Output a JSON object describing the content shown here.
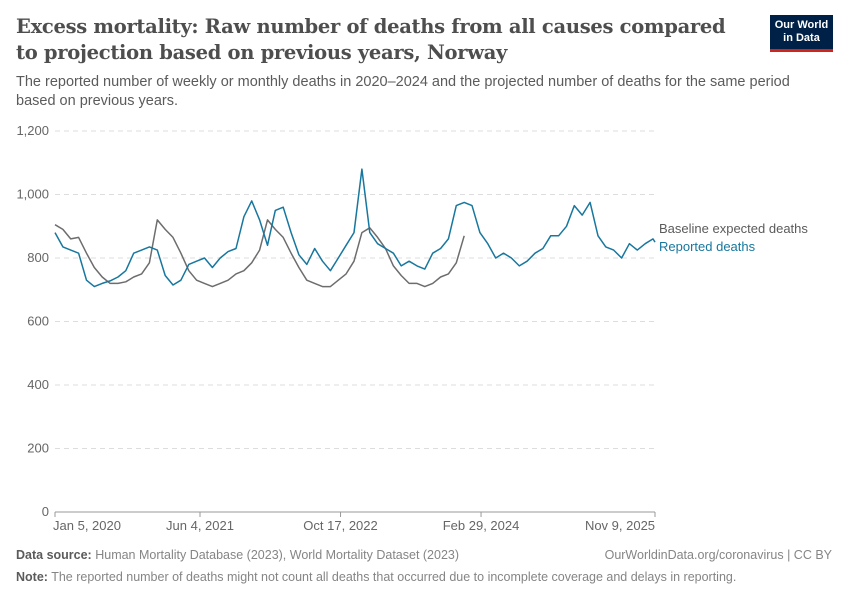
{
  "header": {
    "title": "Excess mortality: Raw number of deaths from all causes compared to projection based on previous years, Norway",
    "subtitle": "The reported number of weekly or monthly deaths in 2020–2024 and the projected number of deaths for the same period based on previous years.",
    "logo_text": "Our World in Data"
  },
  "footer": {
    "source_label": "Data source:",
    "source_text": "Human Mortality Database (2023), World Mortality Dataset (2023)",
    "link_text": "OurWorldinData.org/coronavirus | CC BY",
    "note_label": "Note:",
    "note_text": "The reported number of deaths might not count all deaths that occurred due to incomplete coverage and delays in reporting."
  },
  "chart_data": {
    "type": "line",
    "title": "Excess mortality: Raw number of deaths from all causes compared to projection based on previous years, Norway",
    "xlabel": "",
    "ylabel": "",
    "ylim": [
      0,
      1200
    ],
    "xlim": [
      "2020-01-05",
      "2025-11-09"
    ],
    "y_ticks": [
      0,
      200,
      400,
      600,
      800,
      1000,
      1200
    ],
    "y_tick_labels": [
      "0",
      "200",
      "400",
      "600",
      "800",
      "1,000",
      "1,200"
    ],
    "x_ticks": [
      "2020-01-05",
      "2021-06-04",
      "2022-10-17",
      "2024-02-29",
      "2025-11-09"
    ],
    "x_tick_labels": [
      "Jan 5, 2020",
      "Jun 4, 2021",
      "Oct 17, 2022",
      "Feb 29, 2024",
      "Nov 9, 2025"
    ],
    "grid": "horizontal dashed",
    "legend_placement": "right, inline labels",
    "x": [
      "2020-01-05",
      "2020-02-02",
      "2020-03-01",
      "2020-03-29",
      "2020-04-26",
      "2020-05-24",
      "2020-06-21",
      "2020-07-19",
      "2020-08-16",
      "2020-09-13",
      "2020-10-11",
      "2020-11-08",
      "2020-12-06",
      "2021-01-03",
      "2021-01-31",
      "2021-02-28",
      "2021-03-28",
      "2021-04-25",
      "2021-05-23",
      "2021-06-20",
      "2021-07-18",
      "2021-08-15",
      "2021-09-12",
      "2021-10-10",
      "2021-11-07",
      "2021-12-05",
      "2022-01-02",
      "2022-01-30",
      "2022-02-27",
      "2022-03-27",
      "2022-04-24",
      "2022-05-22",
      "2022-06-19",
      "2022-07-17",
      "2022-08-14",
      "2022-09-11",
      "2022-10-09",
      "2022-11-06",
      "2022-12-04",
      "2023-01-01",
      "2023-01-29",
      "2023-02-26",
      "2023-03-26",
      "2023-04-23",
      "2023-05-21",
      "2023-06-18",
      "2023-07-16",
      "2023-08-13",
      "2023-09-10",
      "2023-10-08",
      "2023-11-05",
      "2023-12-03",
      "2023-12-31",
      "2024-01-28",
      "2024-02-25",
      "2024-03-24",
      "2024-04-21",
      "2024-05-19",
      "2024-06-16",
      "2024-07-14",
      "2024-08-11",
      "2024-09-08",
      "2024-10-06",
      "2024-11-03",
      "2024-12-01",
      "2024-12-29",
      "2025-01-26",
      "2025-02-23",
      "2025-03-23",
      "2025-04-20",
      "2025-05-18",
      "2025-06-15",
      "2025-07-13",
      "2025-08-10",
      "2025-09-07",
      "2025-10-05",
      "2025-11-02",
      "2025-11-09"
    ],
    "series": [
      {
        "name": "Baseline expected deaths",
        "color": "#6d6d6d",
        "values": [
          905,
          890,
          860,
          865,
          815,
          770,
          740,
          720,
          720,
          725,
          740,
          750,
          785,
          920,
          890,
          865,
          815,
          760,
          730,
          720,
          710,
          720,
          730,
          750,
          760,
          785,
          825,
          920,
          890,
          865,
          815,
          770,
          730,
          720,
          710,
          710,
          730,
          750,
          790,
          880,
          895,
          865,
          830,
          775,
          745,
          720,
          720,
          710,
          720,
          740,
          750,
          785,
          870,
          null,
          null,
          null,
          null,
          null,
          null,
          null,
          null,
          null,
          null,
          null,
          null,
          null,
          null,
          null,
          null,
          null,
          null,
          null,
          null,
          null,
          null,
          null,
          null,
          null
        ]
      },
      {
        "name": "Reported deaths",
        "color": "#18779e",
        "values": [
          880,
          835,
          825,
          815,
          730,
          710,
          720,
          728,
          740,
          760,
          815,
          825,
          835,
          825,
          745,
          715,
          730,
          780,
          790,
          800,
          770,
          800,
          820,
          830,
          930,
          980,
          920,
          840,
          950,
          960,
          880,
          810,
          780,
          830,
          790,
          760,
          800,
          840,
          880,
          1080,
          880,
          845,
          830,
          815,
          775,
          790,
          775,
          765,
          815,
          830,
          860,
          965,
          975,
          965,
          880,
          845,
          800,
          815,
          800,
          775,
          790,
          815,
          830,
          870,
          870,
          900,
          965,
          935,
          975,
          870,
          835,
          825,
          800,
          845,
          825,
          845,
          860,
          850
        ]
      }
    ]
  }
}
